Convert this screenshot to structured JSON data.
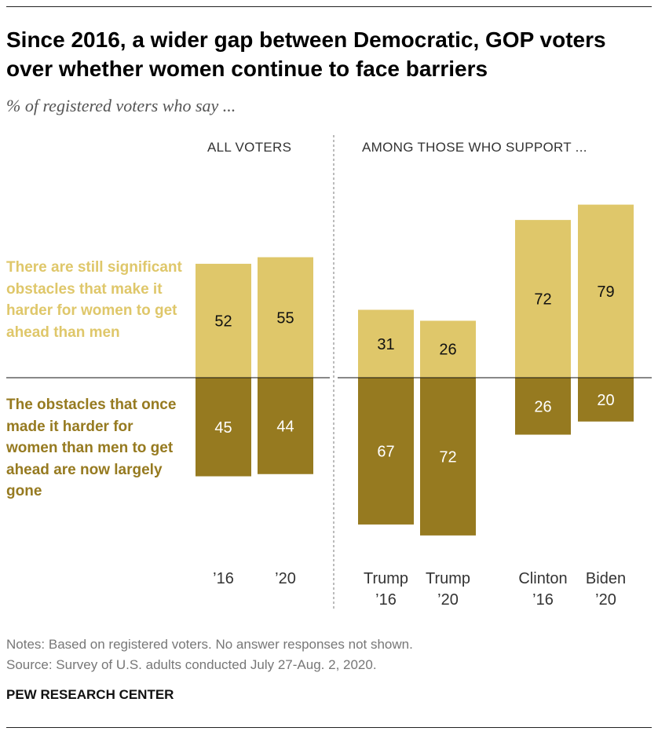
{
  "title": "Since 2016, a wider gap between Democratic, GOP voters over whether women continue to face barriers",
  "subtitle": "% of registered voters who say ...",
  "notes": "Notes: Based on registered voters. No answer responses not shown.",
  "source": "Source: Survey of U.S. adults conducted July 27-Aug. 2, 2020.",
  "brand": "PEW RESEARCH CENTER",
  "chart_data": {
    "type": "bar",
    "stacked": "diverging",
    "group_headers": [
      "ALL VOTERS",
      "AMONG THOSE WHO SUPPORT ..."
    ],
    "categories": [
      [
        "’16"
      ],
      [
        "’20"
      ],
      [
        "Trump",
        "’16"
      ],
      [
        "Trump",
        "’20"
      ],
      [
        "Clinton",
        "’16"
      ],
      [
        "Biden",
        "’20"
      ]
    ],
    "series": [
      {
        "name": "There are still significant obstacles that make it harder for women to get ahead than men",
        "direction": "up",
        "color": "#DFC76A",
        "values": [
          52,
          55,
          31,
          26,
          72,
          79
        ]
      },
      {
        "name": "The obstacles that once made it harder for women than men to get ahead are now largely gone",
        "direction": "down",
        "color": "#967A20",
        "values": [
          45,
          44,
          67,
          72,
          26,
          20
        ]
      }
    ]
  }
}
